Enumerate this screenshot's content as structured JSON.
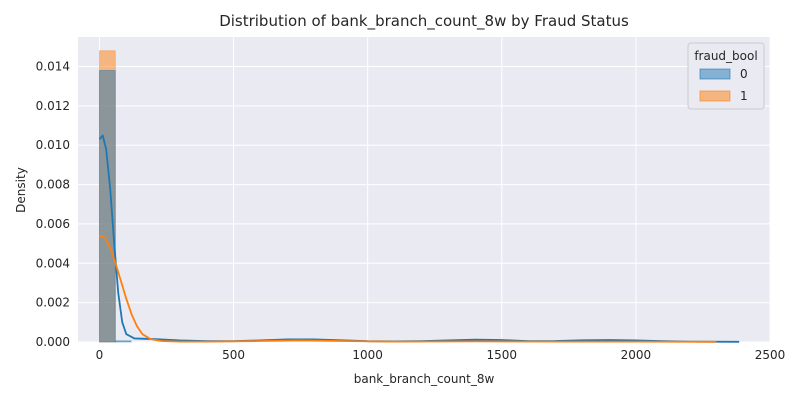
{
  "chart_data": {
    "type": "histogram",
    "title": "Distribution of bank_branch_count_8w by Fraud Status",
    "xlabel": "bank_branch_count_8w",
    "ylabel": "Density",
    "xlim": [
      -80,
      2500
    ],
    "ylim": [
      0,
      0.0155
    ],
    "x_ticks": [
      0,
      500,
      1000,
      1500,
      2000,
      2500
    ],
    "y_ticks": [
      0.0,
      0.002,
      0.004,
      0.006,
      0.008,
      0.01,
      0.012,
      0.014
    ],
    "y_tick_labels": [
      "0.000",
      "0.002",
      "0.004",
      "0.006",
      "0.008",
      "0.010",
      "0.012",
      "0.014"
    ],
    "grid": true,
    "legend": {
      "title": "fraud_bool",
      "placement": "top-right"
    },
    "series": [
      {
        "name": "0",
        "color": "#1f77b4",
        "bins": [
          {
            "x0": 0,
            "x1": 59,
            "density": 0.0138
          },
          {
            "x0": 59,
            "x1": 118,
            "density": 6e-05
          }
        ],
        "kde": [
          [
            0,
            0.0103
          ],
          [
            12,
            0.0105
          ],
          [
            25,
            0.0098
          ],
          [
            40,
            0.0078
          ],
          [
            55,
            0.005
          ],
          [
            70,
            0.0025
          ],
          [
            85,
            0.001
          ],
          [
            100,
            0.0004
          ],
          [
            130,
            0.00018
          ],
          [
            200,
            0.00015
          ],
          [
            300,
            8e-05
          ],
          [
            400,
            4e-05
          ],
          [
            500,
            4e-05
          ],
          [
            600,
            8e-05
          ],
          [
            700,
            0.00013
          ],
          [
            800,
            0.00013
          ],
          [
            900,
            9e-05
          ],
          [
            1000,
            4e-05
          ],
          [
            1100,
            3e-05
          ],
          [
            1200,
            4e-05
          ],
          [
            1300,
            8e-05
          ],
          [
            1400,
            0.00012
          ],
          [
            1500,
            0.0001
          ],
          [
            1600,
            4e-05
          ],
          [
            1700,
            5e-05
          ],
          [
            1800,
            9e-05
          ],
          [
            1900,
            0.0001
          ],
          [
            2000,
            8e-05
          ],
          [
            2100,
            4e-05
          ],
          [
            2200,
            2e-05
          ],
          [
            2385,
            1e-05
          ]
        ]
      },
      {
        "name": "1",
        "color": "#ff7f0e",
        "bins": [
          {
            "x0": 0,
            "x1": 59,
            "density": 0.0148
          }
        ],
        "kde": [
          [
            0,
            0.0054
          ],
          [
            20,
            0.0053
          ],
          [
            40,
            0.0048
          ],
          [
            60,
            0.004
          ],
          [
            80,
            0.0031
          ],
          [
            100,
            0.0022
          ],
          [
            120,
            0.0014
          ],
          [
            140,
            0.0008
          ],
          [
            160,
            0.0004
          ],
          [
            190,
            0.00015
          ],
          [
            230,
            5e-05
          ],
          [
            300,
            2e-05
          ],
          [
            400,
            2e-05
          ],
          [
            600,
            5e-05
          ],
          [
            750,
            8e-05
          ],
          [
            900,
            5e-05
          ],
          [
            1100,
            2e-05
          ],
          [
            1400,
            3e-05
          ],
          [
            1700,
            2e-05
          ],
          [
            2000,
            2e-05
          ],
          [
            2300,
            1e-05
          ]
        ]
      }
    ]
  }
}
